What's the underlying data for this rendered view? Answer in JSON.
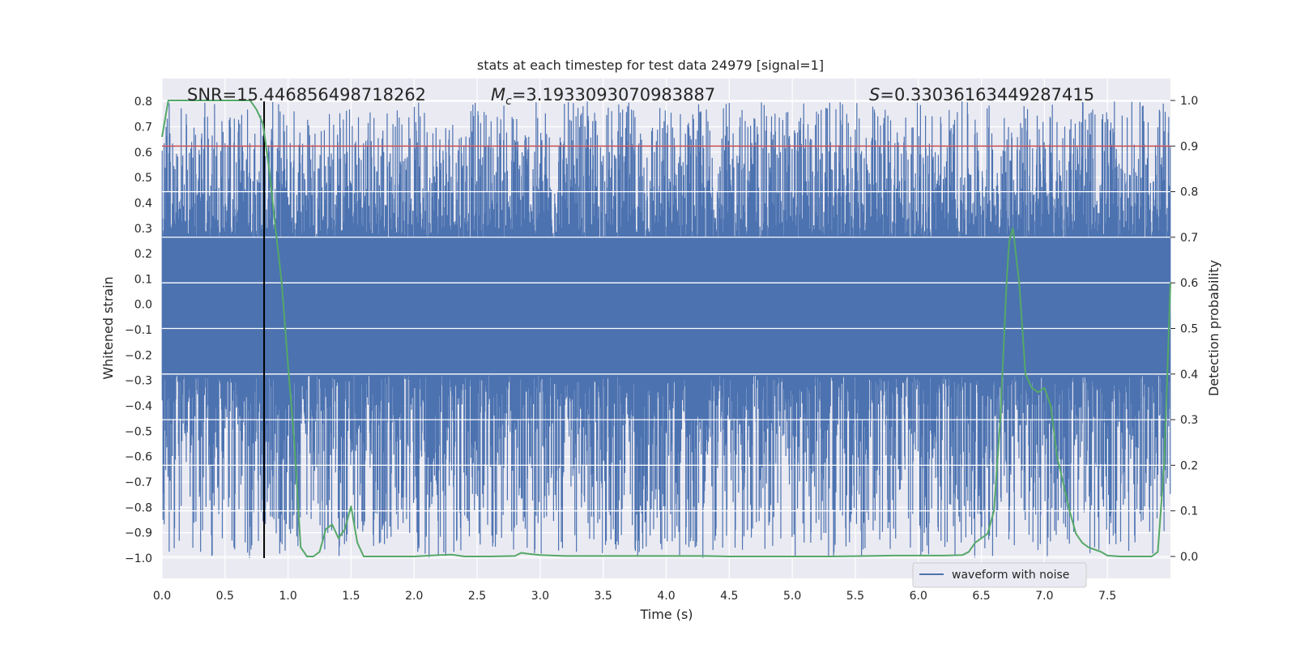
{
  "chart_data": {
    "type": "line",
    "title": "stats at each timestep for test data 24979 [signal=1]",
    "xlabel": "Time (s)",
    "ylabel_left": "Whitened strain",
    "ylabel_right": "Detection probability",
    "xlim": [
      0.0,
      8.0
    ],
    "ylim_left": [
      -1.08,
      0.89
    ],
    "ylim_right": [
      -0.048,
      1.048
    ],
    "x_ticks": [
      "0.0",
      "0.5",
      "1.0",
      "1.5",
      "2.0",
      "2.5",
      "3.0",
      "3.5",
      "4.0",
      "4.5",
      "5.0",
      "5.5",
      "6.0",
      "6.5",
      "7.0",
      "7.5"
    ],
    "y_ticks_left": [
      "0.8",
      "0.7",
      "0.6",
      "0.5",
      "0.4",
      "0.3",
      "0.2",
      "0.1",
      "0.0",
      "−0.1",
      "−0.2",
      "−0.3",
      "−0.4",
      "−0.5",
      "−0.6",
      "−0.7",
      "−0.8",
      "−0.9",
      "−1.0"
    ],
    "y_ticks_right": [
      "1.0",
      "0.9",
      "0.8",
      "0.7",
      "0.6",
      "0.5",
      "0.4",
      "0.3",
      "0.2",
      "0.1",
      "0.0"
    ],
    "annotations": {
      "snr": "SNR=15.446856498718262",
      "mc_symbol": "M",
      "mc_sub": "c",
      "mc_value": "=3.1933093070983887",
      "s_symbol": "S",
      "s_value": "=0.33036163449287415"
    },
    "threshold_right": 0.9,
    "event_time": 0.81,
    "waveform": {
      "name": "waveform with noise",
      "core_band": [
        -0.28,
        0.26
      ],
      "noise_range": [
        -1.0,
        0.8
      ],
      "color": "#4c72b0"
    },
    "probability": {
      "name": "detection probability",
      "color": "#55a868",
      "x": [
        0.0,
        0.05,
        0.1,
        0.2,
        0.3,
        0.4,
        0.5,
        0.6,
        0.7,
        0.75,
        0.8,
        0.85,
        0.9,
        0.95,
        1.0,
        1.05,
        1.1,
        1.15,
        1.2,
        1.25,
        1.3,
        1.35,
        1.4,
        1.45,
        1.5,
        1.55,
        1.6,
        1.7,
        1.8,
        2.0,
        2.2,
        2.3,
        2.4,
        2.6,
        2.8,
        2.85,
        2.9,
        3.0,
        3.2,
        3.5,
        3.8,
        4.0,
        4.3,
        4.5,
        4.7,
        5.0,
        5.3,
        5.6,
        5.8,
        6.0,
        6.2,
        6.35,
        6.4,
        6.45,
        6.5,
        6.55,
        6.6,
        6.65,
        6.7,
        6.72,
        6.75,
        6.8,
        6.85,
        6.9,
        6.95,
        7.0,
        7.05,
        7.1,
        7.15,
        7.2,
        7.25,
        7.3,
        7.35,
        7.4,
        7.45,
        7.5,
        7.6,
        7.7,
        7.8,
        7.85,
        7.9,
        7.95,
        8.0
      ],
      "y": [
        0.92,
        1.0,
        1.0,
        1.0,
        1.0,
        1.0,
        1.0,
        1.0,
        1.0,
        0.98,
        0.95,
        0.85,
        0.72,
        0.6,
        0.42,
        0.25,
        0.02,
        0.0,
        0.0,
        0.01,
        0.06,
        0.07,
        0.04,
        0.06,
        0.11,
        0.03,
        0.0,
        0.0,
        0.0,
        0.0,
        0.003,
        0.004,
        0.0,
        0.0,
        0.001,
        0.008,
        0.006,
        0.003,
        0.001,
        0.001,
        0.001,
        0.001,
        0.001,
        0.0,
        0.0,
        0.0,
        0.0,
        0.001,
        0.002,
        0.002,
        0.002,
        0.003,
        0.01,
        0.03,
        0.04,
        0.05,
        0.1,
        0.3,
        0.6,
        0.69,
        0.72,
        0.6,
        0.4,
        0.37,
        0.36,
        0.37,
        0.33,
        0.22,
        0.16,
        0.1,
        0.05,
        0.03,
        0.02,
        0.015,
        0.01,
        0.002,
        0.0,
        0.0,
        0.0,
        0.0,
        0.01,
        0.2,
        0.6
      ]
    },
    "legend": {
      "label": "waveform with noise",
      "position": "lower-right"
    },
    "colors": {
      "background": "#eaeaf2",
      "grid": "#ffffff",
      "threshold": "#c44e52",
      "event_line": "#000000",
      "text": "#262626"
    }
  }
}
